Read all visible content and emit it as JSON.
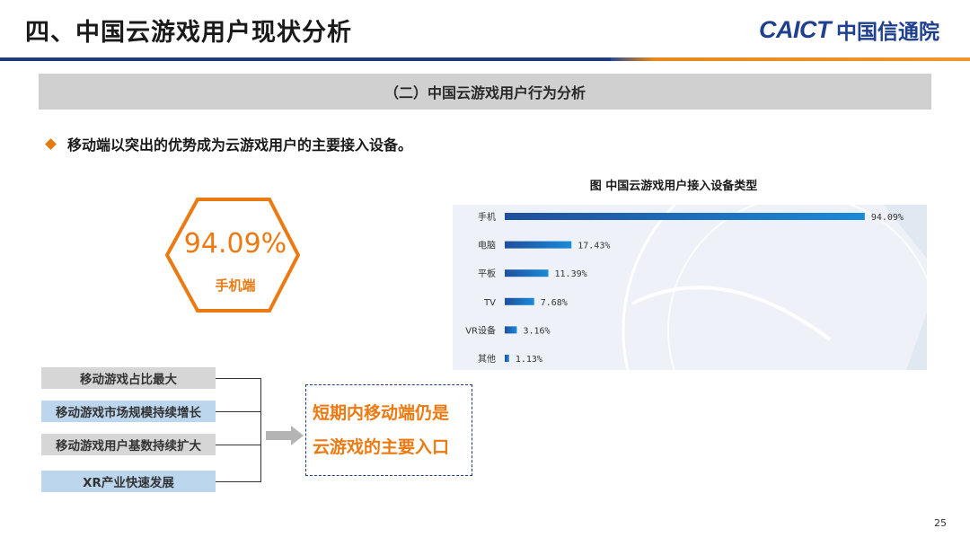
{
  "header": {
    "title": "四、中国云游戏用户现状分析",
    "logo_latin": "CAICT",
    "logo_cn": "中国信通院"
  },
  "section": {
    "title": "（二）中国云游戏用户行为分析"
  },
  "bullet": {
    "text": "移动端以突出的优势成为云游戏用户的主要接入设备。"
  },
  "highlight": {
    "value": "94.09%",
    "label": "手机端",
    "color": "#ec7a13"
  },
  "factors": [
    "移动游戏占比最大",
    "移动游戏市场规模持续增长",
    "移动游戏用户基数持续扩大",
    "XR产业快速发展"
  ],
  "conclusion": {
    "line1": "短期内移动端仍是",
    "line2": "云游戏的主要入口"
  },
  "chart_data": {
    "type": "bar",
    "orientation": "horizontal",
    "title": "图  中国云游戏用户接入设备类型",
    "categories": [
      "手机",
      "电脑",
      "平板",
      "TV",
      "VR设备",
      "其他"
    ],
    "values": [
      94.09,
      17.43,
      11.39,
      7.68,
      3.16,
      1.13
    ],
    "value_labels": [
      "94.09%",
      "17.43%",
      "11.39%",
      "7.68%",
      "3.16%",
      "1.13%"
    ],
    "xlim": [
      0,
      100
    ],
    "grid": false,
    "legend": "none",
    "bar_color_start": "#1f4f9c",
    "bar_color_end": "#1a8ad8"
  },
  "footer": {
    "page_number": "25"
  }
}
